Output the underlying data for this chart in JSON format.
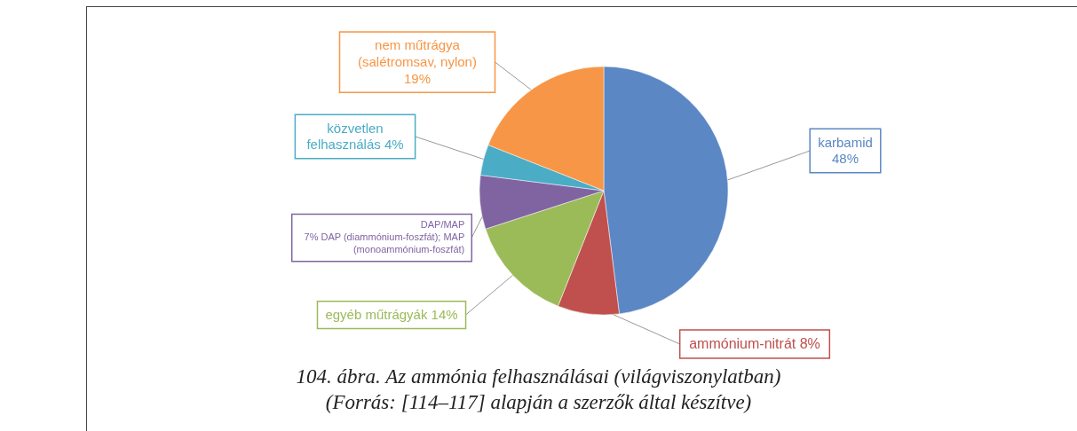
{
  "chart_data": {
    "type": "pie",
    "title": "104. ábra. Az ammónia felhasználásai (világviszonylatban)",
    "subtitle": "(Forrás: [114–117] alapján a szerzők által készítve)",
    "categories": [
      "karbamid",
      "ammónium-nitrát",
      "egyéb műtrágyák",
      "DAP/MAP",
      "közvetlen felhasználás",
      "nem műtrágya (salétromsav, nylon)"
    ],
    "values": [
      48,
      8,
      14,
      7,
      4,
      19
    ],
    "value_labels": [
      "48%",
      "8%",
      "14%",
      "7%",
      "4%",
      "19%"
    ],
    "colors": [
      "#5b87c4",
      "#c0504d",
      "#9bbb59",
      "#8064a2",
      "#4bacc6",
      "#f79646"
    ],
    "annotations": [
      "DAP (diammónium-foszfát); MAP (monoammónium-foszfát)"
    ]
  }
}
